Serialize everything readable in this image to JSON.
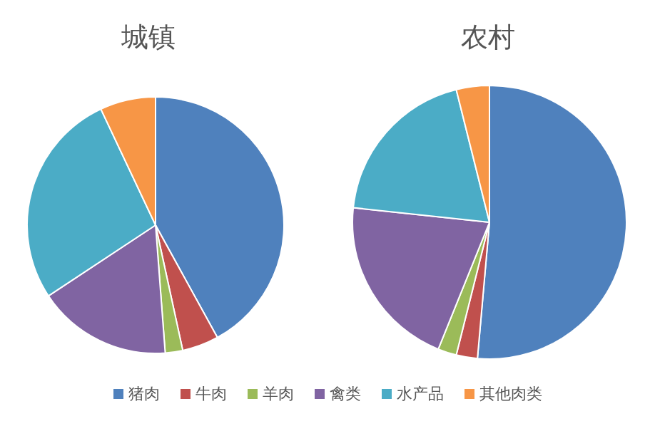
{
  "chart_data": [
    {
      "type": "pie",
      "title": "城镇",
      "categories": [
        "猪肉",
        "牛肉",
        "羊肉",
        "禽类",
        "水产品",
        "其他肉类"
      ],
      "values": [
        42,
        4.6,
        2.2,
        16.9,
        27.3,
        7
      ],
      "colors": [
        "#4f81bd",
        "#c0504d",
        "#9bbb59",
        "#8064a2",
        "#4bacc6",
        "#f79646"
      ],
      "legend": "bottom"
    },
    {
      "type": "pie",
      "title": "农村",
      "categories": [
        null,
        null,
        null,
        null,
        null,
        null
      ],
      "values": [
        51.4,
        2.5,
        2.2,
        20.6,
        19.4,
        3.9
      ],
      "colors": [
        "#4f81bd",
        "#c0504d",
        "#9bbb59",
        "#8064a2",
        "#4bacc6",
        "#f79646"
      ]
    }
  ]
}
